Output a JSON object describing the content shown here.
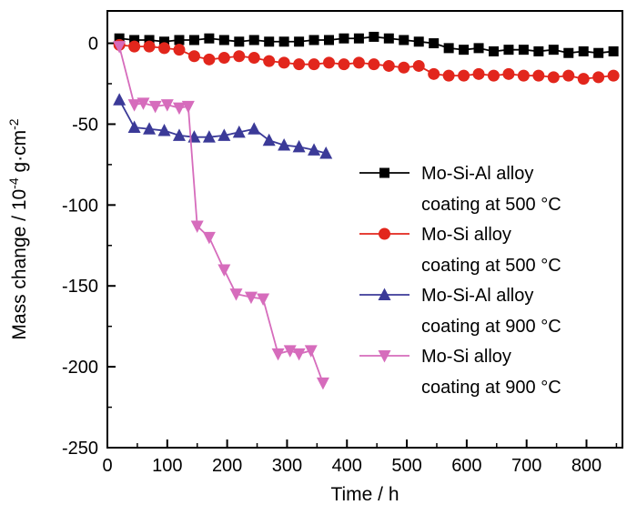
{
  "chart_data": {
    "type": "line",
    "title": "",
    "xlabel": "Time / h",
    "ylabel": "Mass change / 10⁻⁴ g·cm⁻²",
    "ylabel_parts": [
      {
        "text": "Mass change / 10"
      },
      {
        "text": "-4",
        "sup": true
      },
      {
        "text": " g·cm"
      },
      {
        "text": "-2",
        "sup": true
      }
    ],
    "xlim": [
      0,
      860
    ],
    "ylim": [
      -250,
      20
    ],
    "xticks": [
      0,
      100,
      200,
      300,
      400,
      500,
      600,
      700,
      800
    ],
    "yticks": [
      0,
      -50,
      -100,
      -150,
      -200,
      -250
    ],
    "x_minor_step": 50,
    "y_minor_step": 25,
    "grid": false,
    "legend_position": "center-right",
    "axis_color": "#000000",
    "series": [
      {
        "name": "Mo-Si-Al alloy coating at 500 °C",
        "legend_line1": "Mo-Si-Al alloy",
        "legend_line2": "coating at 500 °C",
        "color": "#000000",
        "marker": "square",
        "x": [
          20,
          45,
          70,
          95,
          120,
          145,
          170,
          195,
          220,
          245,
          270,
          295,
          320,
          345,
          370,
          395,
          420,
          445,
          470,
          495,
          520,
          545,
          570,
          595,
          620,
          645,
          670,
          695,
          720,
          745,
          770,
          795,
          820,
          845
        ],
        "y": [
          3,
          2,
          2,
          1,
          2,
          2,
          3,
          2,
          1,
          2,
          1,
          1,
          1,
          2,
          2,
          3,
          3,
          4,
          3,
          2,
          1,
          0,
          -3,
          -4,
          -3,
          -5,
          -4,
          -4,
          -5,
          -4,
          -6,
          -5,
          -6,
          -5
        ]
      },
      {
        "name": "Mo-Si alloy coating at 500 °C",
        "legend_line1": "Mo-Si alloy",
        "legend_line2": "coating at 500 °C",
        "color": "#e2261c",
        "marker": "circle",
        "x": [
          20,
          45,
          70,
          95,
          120,
          145,
          170,
          195,
          220,
          245,
          270,
          295,
          320,
          345,
          370,
          395,
          420,
          445,
          470,
          495,
          520,
          545,
          570,
          595,
          620,
          645,
          670,
          695,
          720,
          745,
          770,
          795,
          820,
          845
        ],
        "y": [
          -1,
          -2,
          -2,
          -3,
          -4,
          -8,
          -10,
          -9,
          -8,
          -9,
          -11,
          -12,
          -13,
          -13,
          -12,
          -13,
          -12,
          -13,
          -14,
          -15,
          -14,
          -19,
          -20,
          -20,
          -19,
          -20,
          -19,
          -20,
          -20,
          -21,
          -20,
          -22,
          -21,
          -20
        ]
      },
      {
        "name": "Mo-Si-Al alloy coating at 900 °C",
        "legend_line1": "Mo-Si-Al alloy",
        "legend_line2": "coating at 900 °C",
        "color": "#3b3a98",
        "marker": "triangle-up",
        "x": [
          20,
          45,
          70,
          95,
          120,
          145,
          170,
          195,
          220,
          245,
          270,
          295,
          320,
          345,
          365
        ],
        "y": [
          -35,
          -52,
          -53,
          -54,
          -57,
          -58,
          -58,
          -57,
          -55,
          -53,
          -60,
          -63,
          -64,
          -66,
          -68
        ]
      },
      {
        "name": "Mo-Si alloy coating at 900 °C",
        "legend_line1": "Mo-Si alloy",
        "legend_line2": "coating at 900 °C",
        "color": "#d66cbc",
        "marker": "triangle-down",
        "x": [
          20,
          45,
          60,
          80,
          100,
          120,
          135,
          150,
          170,
          195,
          215,
          240,
          260,
          285,
          305,
          320,
          340,
          360
        ],
        "y": [
          -2,
          -38,
          -37,
          -39,
          -38,
          -40,
          -39,
          -113,
          -120,
          -140,
          -155,
          -157,
          -158,
          -192,
          -190,
          -192,
          -190,
          -210
        ]
      }
    ]
  }
}
